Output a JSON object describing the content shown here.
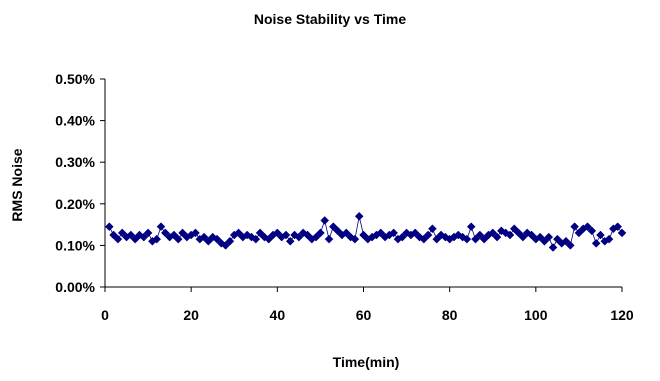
{
  "chart_data": {
    "type": "scatter",
    "title": "Noise Stability vs Time",
    "xlabel": "Time(min)",
    "ylabel": "RMS Noise",
    "xlim": [
      0,
      120
    ],
    "ylim": [
      0.0,
      0.5
    ],
    "x_ticks": [
      "0",
      "20",
      "40",
      "60",
      "80",
      "100",
      "120"
    ],
    "y_ticks": [
      "0.00%",
      "0.10%",
      "0.20%",
      "0.30%",
      "0.40%",
      "0.50%"
    ],
    "grid": false,
    "legend": "none",
    "marker_color": "#000080",
    "series": [
      {
        "x": [
          1,
          2,
          3,
          4,
          5,
          6,
          7,
          8,
          9,
          10,
          11,
          12,
          13,
          14,
          15,
          16,
          17,
          18,
          19,
          20,
          21,
          22,
          23,
          24,
          25,
          26,
          27,
          28,
          29,
          30,
          31,
          32,
          33,
          34,
          35,
          36,
          37,
          38,
          39,
          40,
          41,
          42,
          43,
          44,
          45,
          46,
          47,
          48,
          49,
          50,
          51,
          52,
          53,
          54,
          55,
          56,
          57,
          58,
          59,
          60,
          61,
          62,
          63,
          64,
          65,
          66,
          67,
          68,
          69,
          70,
          71,
          72,
          73,
          74,
          75,
          76,
          77,
          78,
          79,
          80,
          81,
          82,
          83,
          84,
          85,
          86,
          87,
          88,
          89,
          90,
          91,
          92,
          93,
          94,
          95,
          96,
          97,
          98,
          99,
          100,
          101,
          102,
          103,
          104,
          105,
          106,
          107,
          108,
          109,
          110,
          111,
          112,
          113,
          114,
          115,
          116,
          117,
          118,
          119,
          120
        ],
        "y": [
          0.145,
          0.125,
          0.115,
          0.13,
          0.12,
          0.125,
          0.115,
          0.125,
          0.12,
          0.13,
          0.11,
          0.115,
          0.145,
          0.13,
          0.12,
          0.125,
          0.115,
          0.13,
          0.12,
          0.125,
          0.13,
          0.115,
          0.12,
          0.11,
          0.12,
          0.115,
          0.105,
          0.1,
          0.11,
          0.125,
          0.13,
          0.12,
          0.125,
          0.12,
          0.115,
          0.13,
          0.12,
          0.115,
          0.125,
          0.13,
          0.12,
          0.125,
          0.11,
          0.125,
          0.12,
          0.13,
          0.125,
          0.115,
          0.12,
          0.13,
          0.16,
          0.115,
          0.145,
          0.135,
          0.125,
          0.13,
          0.12,
          0.115,
          0.17,
          0.125,
          0.115,
          0.12,
          0.125,
          0.13,
          0.12,
          0.125,
          0.13,
          0.115,
          0.12,
          0.13,
          0.125,
          0.13,
          0.12,
          0.115,
          0.125,
          0.14,
          0.115,
          0.125,
          0.12,
          0.115,
          0.12,
          0.125,
          0.12,
          0.115,
          0.145,
          0.115,
          0.125,
          0.115,
          0.125,
          0.13,
          0.12,
          0.135,
          0.13,
          0.125,
          0.14,
          0.13,
          0.12,
          0.13,
          0.125,
          0.115,
          0.12,
          0.11,
          0.12,
          0.095,
          0.115,
          0.105,
          0.11,
          0.1,
          0.145,
          0.13,
          0.14,
          0.145,
          0.135,
          0.105,
          0.125,
          0.11,
          0.115,
          0.14,
          0.145,
          0.13
        ]
      }
    ]
  }
}
